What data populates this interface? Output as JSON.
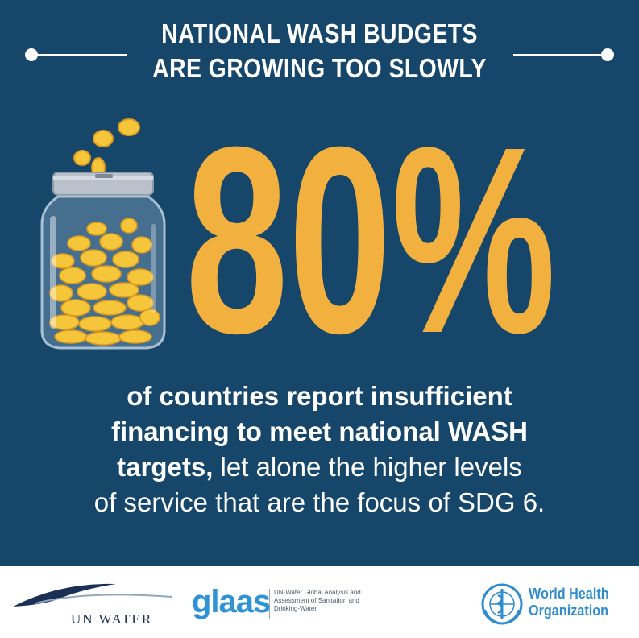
{
  "title": {
    "line1": "NATIONAL WASH BUDGETS",
    "line2": "ARE GROWING TOO SLOWLY"
  },
  "stat": {
    "value": "80%"
  },
  "body": {
    "line1": "of countries report insufficient",
    "line2": "financing to meet national WASH",
    "line3_bold": "targets,",
    "line3_rest": " let alone the higher levels",
    "line4": "of service that are the focus of SDG 6."
  },
  "footer": {
    "un_water": "UN WATER",
    "glaas_word": "glaas",
    "glaas_desc": "UN-Water Global Analysis and Assessment of Sanitation and Drinking-Water",
    "who_line1": "World Health",
    "who_line2": "Organization"
  },
  "colors": {
    "background": "#16466a",
    "accent": "#f2b13f",
    "text": "#ffffff",
    "who_blue": "#2e8ccf",
    "glaas_blue": "#2e93d6"
  },
  "icons": [
    "coin-jar-icon",
    "un-water-wave-logo",
    "glaas-logo",
    "who-emblem-icon"
  ]
}
